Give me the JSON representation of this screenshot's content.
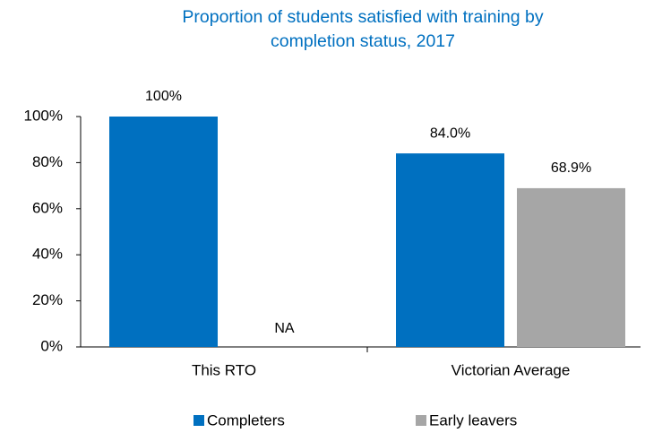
{
  "chart_data": {
    "type": "bar",
    "title": "Proportion of students satisfied with training by completion status, 2017",
    "categories": [
      "This RTO",
      "Victorian Average"
    ],
    "series": [
      {
        "name": "Completers",
        "color": "#0070c0",
        "values": [
          100,
          84.0
        ],
        "value_labels": [
          "100%",
          "84.0%"
        ]
      },
      {
        "name": "Early leavers",
        "color": "#a6a6a6",
        "values": [
          null,
          68.9
        ],
        "value_labels": [
          "NA",
          "68.9%"
        ]
      }
    ],
    "ylim": [
      0,
      100
    ],
    "yticks": [
      {
        "value": 0,
        "label": "0%"
      },
      {
        "value": 20,
        "label": "20%"
      },
      {
        "value": 40,
        "label": "40%"
      },
      {
        "value": 60,
        "label": "60%"
      },
      {
        "value": 80,
        "label": "80%"
      },
      {
        "value": 100,
        "label": "100%"
      }
    ],
    "grid": false,
    "legend": "bottom"
  }
}
